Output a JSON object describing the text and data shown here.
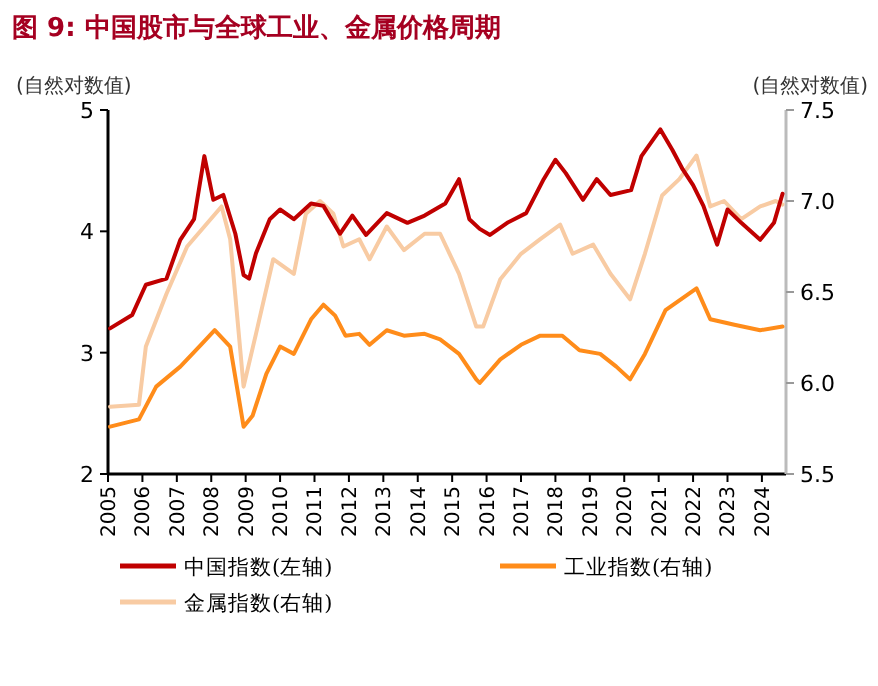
{
  "chart_data": {
    "type": "line",
    "title": "图 9: 中国股市与全球工业、金属价格周期",
    "ylabel": "(自然对数值)",
    "y2label": "(自然对数值)",
    "xlim": [
      2005,
      2024.7
    ],
    "xticks": [
      2005,
      2006,
      2007,
      2008,
      2009,
      2010,
      2011,
      2012,
      2013,
      2014,
      2015,
      2016,
      2017,
      2018,
      2019,
      2020,
      2021,
      2022,
      2023,
      2024
    ],
    "ylim": [
      2,
      5
    ],
    "yticks": [
      2,
      3,
      4,
      5
    ],
    "y2lim": [
      5.5,
      7.5
    ],
    "y2ticks": [
      {
        "value": 5.5,
        "label": "5.5"
      },
      {
        "value": 6,
        "label": "6.0"
      },
      {
        "value": 6.5,
        "label": "6.5"
      },
      {
        "value": 7,
        "label": "7.0"
      },
      {
        "value": 7.5,
        "label": "7.5"
      }
    ],
    "grid": false,
    "legend": "bottom",
    "line_style": "solid",
    "marker": "none",
    "series": [
      {
        "name": "中国指数(左轴)",
        "color": "#c00000",
        "x": [
          2005.06,
          2005.7,
          2006.1,
          2006.7,
          2007.1,
          2007.5,
          2007.8,
          2008.06,
          2008.35,
          2008.7,
          2008.94,
          2009.1,
          2009.3,
          2009.7,
          2010.0,
          2010.4,
          2010.9,
          2011.26,
          2011.74,
          2012.1,
          2012.5,
          2013.1,
          2013.7,
          2014.2,
          2014.8,
          2015.2,
          2015.5,
          2015.8,
          2016.1,
          2016.6,
          2017.15,
          2017.66,
          2018.0,
          2018.3,
          2018.8,
          2019.2,
          2019.6,
          2020.2,
          2020.5,
          2021.05,
          2021.4,
          2021.7,
          2022.0,
          2022.3,
          2022.7,
          2023.0,
          2023.4,
          2023.95,
          2024.35,
          2024.6
        ],
        "values": [
          3.2,
          3.31,
          3.56,
          3.61,
          3.93,
          4.1,
          4.62,
          4.26,
          4.3,
          3.98,
          3.64,
          3.61,
          3.82,
          4.1,
          4.18,
          4.1,
          4.23,
          4.21,
          3.98,
          4.13,
          3.97,
          4.15,
          4.07,
          4.13,
          4.23,
          4.43,
          4.1,
          4.02,
          3.97,
          4.07,
          4.15,
          4.43,
          4.59,
          4.48,
          4.26,
          4.43,
          4.3,
          4.34,
          4.62,
          4.84,
          4.67,
          4.51,
          4.38,
          4.21,
          3.89,
          4.18,
          4.07,
          3.93,
          4.07,
          4.31
        ]
      },
      {
        "name": "工业指数(右轴)",
        "color": "#ff8c1a",
        "axis": "y2",
        "x": [
          2005.06,
          2005.9,
          2006.4,
          2007.1,
          2007.7,
          2008.1,
          2008.55,
          2008.94,
          2009.2,
          2009.6,
          2010.0,
          2010.4,
          2010.9,
          2011.26,
          2011.6,
          2011.9,
          2012.3,
          2012.6,
          2013.1,
          2013.6,
          2014.2,
          2014.65,
          2015.2,
          2015.7,
          2015.8,
          2016.4,
          2017.0,
          2017.56,
          2018.2,
          2018.7,
          2019.3,
          2019.77,
          2020.17,
          2020.6,
          2021.2,
          2021.8,
          2022.1,
          2022.5,
          2023.2,
          2023.95,
          2024.6
        ],
        "values": [
          5.76,
          5.8,
          5.98,
          6.09,
          6.21,
          6.29,
          6.2,
          5.76,
          5.82,
          6.05,
          6.2,
          6.16,
          6.35,
          6.43,
          6.37,
          6.26,
          6.27,
          6.21,
          6.29,
          6.26,
          6.27,
          6.24,
          6.16,
          6.02,
          6.0,
          6.13,
          6.21,
          6.26,
          6.26,
          6.18,
          6.16,
          6.09,
          6.02,
          6.16,
          6.4,
          6.48,
          6.52,
          6.35,
          6.32,
          6.29,
          6.31
        ]
      },
      {
        "name": "金属指数(右轴)",
        "color": "#f8cba3",
        "axis": "y2",
        "x": [
          2005.06,
          2005.9,
          2006.1,
          2006.7,
          2007.3,
          2007.8,
          2008.3,
          2008.55,
          2008.94,
          2009.3,
          2009.8,
          2010.4,
          2010.75,
          2011.16,
          2011.55,
          2011.84,
          2012.3,
          2012.6,
          2013.1,
          2013.6,
          2014.2,
          2014.65,
          2015.2,
          2015.7,
          2015.9,
          2016.4,
          2017.0,
          2017.56,
          2018.14,
          2018.5,
          2019.1,
          2019.6,
          2020.17,
          2020.6,
          2021.1,
          2021.6,
          2022.1,
          2022.5,
          2022.9,
          2023.4,
          2023.95,
          2024.4,
          2024.6
        ],
        "values": [
          5.87,
          5.88,
          6.2,
          6.49,
          6.75,
          6.86,
          6.97,
          6.79,
          5.98,
          6.27,
          6.68,
          6.6,
          6.93,
          7.0,
          6.93,
          6.75,
          6.79,
          6.68,
          6.86,
          6.73,
          6.82,
          6.82,
          6.6,
          6.31,
          6.31,
          6.57,
          6.71,
          6.79,
          6.87,
          6.71,
          6.76,
          6.6,
          6.46,
          6.71,
          7.03,
          7.12,
          7.25,
          6.97,
          7.0,
          6.9,
          6.97,
          7.0,
          6.98
        ]
      }
    ]
  }
}
